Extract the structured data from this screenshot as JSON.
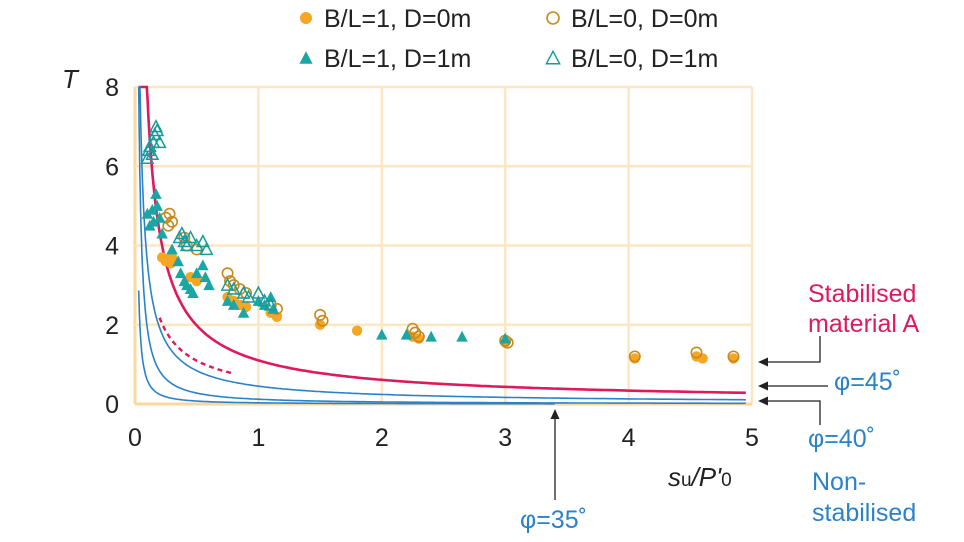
{
  "chart_data": {
    "type": "scatter",
    "xlabel": {
      "italic_s": "s",
      "sub": "u",
      "rest": "/P'",
      "sub2": "0"
    },
    "ylabel": "T",
    "xlim": [
      0,
      5
    ],
    "ylim": [
      0,
      8
    ],
    "x_ticks": [
      "0",
      "1",
      "2",
      "3",
      "4",
      "5"
    ],
    "y_ticks": [
      "0",
      "2",
      "4",
      "6",
      "8"
    ],
    "grid": true,
    "legend_position": "top",
    "colors": {
      "orange": "#f5a623",
      "orange_open": "#c68a1e",
      "teal": "#1ba5a5",
      "teal_open": "#1a9a9a",
      "red": "#e0195a",
      "blue": "#2b82c9",
      "grid": "#fde6c2",
      "axis": "#fcd79e"
    },
    "series": [
      {
        "name": "B/L=1, D=0m",
        "marker": "filled-circle",
        "color": "#f5a623",
        "points": [
          [
            0.22,
            3.7
          ],
          [
            0.25,
            3.6
          ],
          [
            0.27,
            3.65
          ],
          [
            0.29,
            3.55
          ],
          [
            0.3,
            3.7
          ],
          [
            0.45,
            3.2
          ],
          [
            0.5,
            3.1
          ],
          [
            0.75,
            2.7
          ],
          [
            0.8,
            2.6
          ],
          [
            0.85,
            2.5
          ],
          [
            0.9,
            2.45
          ],
          [
            1.1,
            2.3
          ],
          [
            1.15,
            2.2
          ],
          [
            1.5,
            2.0
          ],
          [
            1.8,
            1.85
          ],
          [
            2.25,
            1.7
          ],
          [
            2.3,
            1.65
          ],
          [
            3.0,
            1.55
          ],
          [
            4.05,
            1.15
          ],
          [
            4.55,
            1.2
          ],
          [
            4.6,
            1.15
          ],
          [
            4.85,
            1.15
          ]
        ]
      },
      {
        "name": "B/L=0, D=0m",
        "marker": "open-circle",
        "color": "#c68a1e",
        "points": [
          [
            0.25,
            4.7
          ],
          [
            0.27,
            4.5
          ],
          [
            0.28,
            4.8
          ],
          [
            0.3,
            4.6
          ],
          [
            0.4,
            4.2
          ],
          [
            0.42,
            4.0
          ],
          [
            0.5,
            3.9
          ],
          [
            0.75,
            3.3
          ],
          [
            0.77,
            3.1
          ],
          [
            0.8,
            3.0
          ],
          [
            0.85,
            2.9
          ],
          [
            0.9,
            2.8
          ],
          [
            1.1,
            2.5
          ],
          [
            1.15,
            2.4
          ],
          [
            1.5,
            2.25
          ],
          [
            1.52,
            2.1
          ],
          [
            2.25,
            1.9
          ],
          [
            2.27,
            1.8
          ],
          [
            2.3,
            1.7
          ],
          [
            3.0,
            1.6
          ],
          [
            3.02,
            1.55
          ],
          [
            4.05,
            1.2
          ],
          [
            4.55,
            1.3
          ],
          [
            4.85,
            1.2
          ]
        ]
      },
      {
        "name": "B/L=1, D=1m",
        "marker": "filled-triangle",
        "color": "#1ba5a5",
        "points": [
          [
            0.1,
            4.8
          ],
          [
            0.12,
            4.5
          ],
          [
            0.14,
            4.9
          ],
          [
            0.15,
            4.6
          ],
          [
            0.17,
            5.3
          ],
          [
            0.18,
            5.0
          ],
          [
            0.2,
            4.7
          ],
          [
            0.22,
            4.3
          ],
          [
            0.3,
            3.9
          ],
          [
            0.35,
            3.6
          ],
          [
            0.37,
            3.3
          ],
          [
            0.4,
            3.1
          ],
          [
            0.42,
            3.0
          ],
          [
            0.45,
            2.9
          ],
          [
            0.47,
            2.8
          ],
          [
            0.5,
            3.3
          ],
          [
            0.55,
            3.5
          ],
          [
            0.57,
            3.2
          ],
          [
            0.6,
            3.0
          ],
          [
            0.75,
            2.6
          ],
          [
            0.8,
            2.5
          ],
          [
            0.88,
            2.3
          ],
          [
            1.0,
            2.6
          ],
          [
            1.05,
            2.5
          ],
          [
            1.1,
            2.7
          ],
          [
            1.12,
            2.4
          ],
          [
            2.0,
            1.75
          ],
          [
            2.2,
            1.75
          ],
          [
            2.4,
            1.7
          ],
          [
            2.65,
            1.7
          ],
          [
            3.0,
            1.65
          ]
        ]
      },
      {
        "name": "B/L=0, D=1m",
        "marker": "open-triangle",
        "color": "#1a9a9a",
        "points": [
          [
            0.1,
            6.2
          ],
          [
            0.11,
            6.4
          ],
          [
            0.12,
            6.5
          ],
          [
            0.14,
            6.3
          ],
          [
            0.15,
            6.6
          ],
          [
            0.16,
            6.8
          ],
          [
            0.17,
            7.0
          ],
          [
            0.18,
            6.9
          ],
          [
            0.2,
            6.6
          ],
          [
            0.36,
            4.2
          ],
          [
            0.38,
            4.3
          ],
          [
            0.4,
            4.1
          ],
          [
            0.42,
            4.0
          ],
          [
            0.45,
            4.2
          ],
          [
            0.5,
            4.0
          ],
          [
            0.55,
            4.1
          ],
          [
            0.58,
            3.9
          ],
          [
            0.75,
            3.0
          ],
          [
            0.8,
            2.9
          ],
          [
            0.88,
            2.8
          ],
          [
            0.92,
            2.7
          ],
          [
            1.0,
            2.8
          ],
          [
            1.05,
            2.6
          ],
          [
            1.1,
            2.5
          ]
        ]
      }
    ],
    "curves": [
      {
        "name": "Stabilised material A",
        "color": "#e0195a",
        "style": "solid",
        "a": 1.1,
        "b": 0.85,
        "x0": 0.03,
        "x1": 4.95
      },
      {
        "name": "dashed",
        "color": "#e0195a",
        "style": "dashed",
        "a": 0.65,
        "b": 0.75,
        "x0": 0.2,
        "x1": 0.8
      },
      {
        "name": "φ=45°",
        "color": "#2b82c9",
        "style": "solid",
        "a": 0.45,
        "b": 0.9,
        "x0": 0.03,
        "x1": 4.95
      },
      {
        "name": "φ=40°",
        "color": "#2b82c9",
        "style": "solid",
        "a": 0.12,
        "b": 1.2,
        "x0": 0.03,
        "x1": 4.95
      },
      {
        "name": "φ=35°",
        "color": "#2b82c9",
        "style": "solid",
        "a": 0.03,
        "b": 1.3,
        "x0": 0.03,
        "x1": 3.4
      }
    ],
    "annotations": {
      "stabilised_line1": "Stabilised",
      "stabilised_line2": "material A",
      "phi45": "φ=45˚",
      "phi40": "φ=40˚",
      "phi35": "φ=35˚",
      "non_line1": "Non-",
      "non_line2": "stabilised"
    }
  }
}
